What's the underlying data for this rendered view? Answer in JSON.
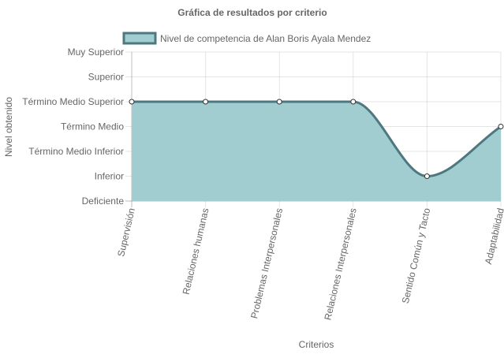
{
  "chart_data": {
    "type": "area",
    "title": "Gráfica de resultados por criterio",
    "xlabel": "Criterios",
    "ylabel": "Nivel obtenido",
    "categories": [
      "Supervisión",
      "Relaciones humanas",
      "Problemas Interpersonales",
      "Relaciones Interpersonales",
      "Sentido Común y Tacto",
      "Adaptabilidad"
    ],
    "y_levels": [
      "Deficiente",
      "Inferior",
      "Término Medio Inferior",
      "Término Medio",
      "Término Medio Superior",
      "Superior",
      "Muy Superior"
    ],
    "ylim": [
      0,
      6
    ],
    "series": [
      {
        "name": "Nivel de competencia de Alan Boris Ayala Mendez",
        "values": [
          4,
          4,
          4,
          4,
          1,
          3
        ]
      }
    ],
    "grid": true,
    "legend_position": "top",
    "colors": {
      "fill": "#a1cdd1",
      "line": "#4e7880",
      "point_fill": "#ffffff",
      "point_stroke": "#333333"
    }
  }
}
